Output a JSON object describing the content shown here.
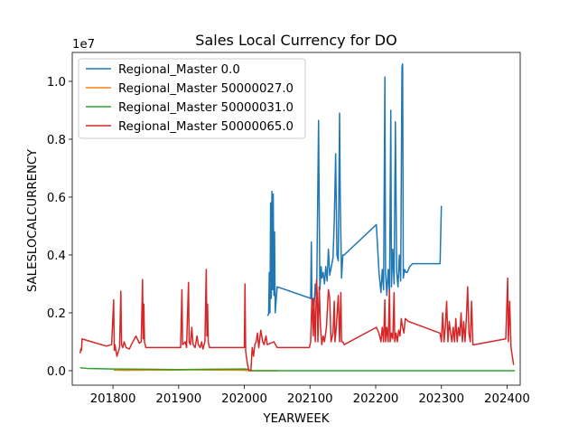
{
  "chart_data": {
    "type": "line",
    "title": "Sales Local Currency for DO",
    "xlabel": "YEARWEEK",
    "ylabel": "SALESLOCALCURRENCY",
    "y_scale_label": "1e7",
    "xlim": [
      201738,
      202420
    ],
    "ylim": [
      -0.5,
      11.0
    ],
    "x_ticks": [
      201800,
      201900,
      202000,
      202100,
      202200,
      202300,
      202400
    ],
    "x_tick_labels": [
      "201800",
      "201900",
      "202000",
      "202100",
      "202200",
      "202300",
      "202400"
    ],
    "y_ticks": [
      0.0,
      0.2,
      0.4,
      0.6,
      0.8,
      1.0
    ],
    "y_tick_labels": [
      "0.0",
      "0.2",
      "0.4",
      "0.6",
      "0.8",
      "1.0"
    ],
    "y_tick_units_in_1e7": [
      0,
      2,
      4,
      6,
      8,
      10
    ],
    "grid": false,
    "legend_position": "top-left",
    "series": [
      {
        "name": "Regional_Master 0.0",
        "color": "#1f77b4",
        "points": [
          [
            202035,
            1.9
          ],
          [
            202037,
            1.95
          ],
          [
            202038,
            3.4
          ],
          [
            202039,
            2.0
          ],
          [
            202040,
            5.8
          ],
          [
            202041,
            2.5
          ],
          [
            202042,
            6.2
          ],
          [
            202043,
            2.8
          ],
          [
            202044,
            6.1
          ],
          [
            202045,
            2.6
          ],
          [
            202046,
            4.8
          ],
          [
            202047,
            2.0
          ],
          [
            202050,
            2.9
          ],
          [
            202101,
            2.5
          ],
          [
            202102,
            4.45
          ],
          [
            202103,
            2.3
          ],
          [
            202104,
            2.5
          ],
          [
            202106,
            2.2
          ],
          [
            202108,
            3.0
          ],
          [
            202110,
            2.4
          ],
          [
            202113,
            8.65
          ],
          [
            202115,
            2.8
          ],
          [
            202117,
            3.6
          ],
          [
            202118,
            3.2
          ],
          [
            202120,
            3.4
          ],
          [
            202122,
            3.0
          ],
          [
            202124,
            3.6
          ],
          [
            202126,
            3.1
          ],
          [
            202128,
            4.2
          ],
          [
            202130,
            3.3
          ],
          [
            202135,
            3.9
          ],
          [
            202137,
            5.2
          ],
          [
            202139,
            7.5
          ],
          [
            202141,
            4.0
          ],
          [
            202143,
            3.8
          ],
          [
            202145,
            8.9
          ],
          [
            202146,
            6.0
          ],
          [
            202148,
            3.2
          ],
          [
            202150,
            4.0
          ],
          [
            202152,
            4.0
          ],
          [
            202201,
            5.05
          ],
          [
            202205,
            3.4
          ],
          [
            202208,
            2.7
          ],
          [
            202210,
            3.5
          ],
          [
            202212,
            2.8
          ],
          [
            202214,
            10.15
          ],
          [
            202215,
            3.4
          ],
          [
            202217,
            2.6
          ],
          [
            202219,
            3.5
          ],
          [
            202221,
            2.7
          ],
          [
            202223,
            9.0
          ],
          [
            202224,
            2.9
          ],
          [
            202226,
            4.2
          ],
          [
            202228,
            3.0
          ],
          [
            202230,
            8.6
          ],
          [
            202232,
            3.4
          ],
          [
            202234,
            2.9
          ],
          [
            202236,
            4.0
          ],
          [
            202238,
            3.1
          ],
          [
            202240,
            10.5
          ],
          [
            202241,
            10.6
          ],
          [
            202242,
            3.2
          ],
          [
            202244,
            3.5
          ],
          [
            202246,
            3.4
          ],
          [
            202248,
            3.4
          ],
          [
            202252,
            3.6
          ],
          [
            202256,
            3.7
          ],
          [
            202298,
            3.7
          ],
          [
            202300,
            5.7
          ]
        ]
      },
      {
        "name": "Regional_Master 50000027.0",
        "color": "#ff7f0e",
        "points": [
          [
            201801,
            0.02
          ],
          [
            201820,
            0.01
          ],
          [
            201850,
            0.02
          ],
          [
            201880,
            0.02
          ],
          [
            201920,
            0.03
          ],
          [
            201960,
            0.02
          ],
          [
            201990,
            0.02
          ],
          [
            202020,
            0.0
          ],
          [
            202050,
            0.0
          ]
        ]
      },
      {
        "name": "Regional_Master 50000031.0",
        "color": "#2ca02c",
        "points": [
          [
            201750,
            0.1
          ],
          [
            201760,
            0.08
          ],
          [
            201800,
            0.06
          ],
          [
            201850,
            0.05
          ],
          [
            201900,
            0.04
          ],
          [
            201950,
            0.05
          ],
          [
            202000,
            0.06
          ],
          [
            202006,
            0.05
          ],
          [
            202008,
            0.02
          ],
          [
            202010,
            0.0
          ],
          [
            202020,
            0.0
          ],
          [
            202050,
            0.0
          ],
          [
            202100,
            0.0
          ],
          [
            202150,
            0.0
          ],
          [
            202200,
            0.0
          ],
          [
            202250,
            0.0
          ],
          [
            202300,
            0.0
          ],
          [
            202350,
            0.0
          ],
          [
            202400,
            0.0
          ],
          [
            202412,
            0.0
          ]
        ]
      },
      {
        "name": "Regional_Master 50000065.0",
        "color": "#d62728",
        "points": [
          [
            201750,
            0.6
          ],
          [
            201751,
            0.75
          ],
          [
            201752,
            0.7
          ],
          [
            201753,
            1.1
          ],
          [
            201760,
            1.05
          ],
          [
            201790,
            0.85
          ],
          [
            201798,
            0.9
          ],
          [
            201801,
            2.45
          ],
          [
            201802,
            0.7
          ],
          [
            201803,
            0.9
          ],
          [
            201806,
            0.5
          ],
          [
            201810,
            0.8
          ],
          [
            201812,
            2.75
          ],
          [
            201813,
            0.9
          ],
          [
            201815,
            0.8
          ],
          [
            201817,
            1.0
          ],
          [
            201820,
            0.8
          ],
          [
            201825,
            0.75
          ],
          [
            201828,
            0.9
          ],
          [
            201835,
            1.2
          ],
          [
            201840,
            0.95
          ],
          [
            201843,
            1.0
          ],
          [
            201845,
            3.15
          ],
          [
            201846,
            1.1
          ],
          [
            201847,
            2.3
          ],
          [
            201848,
            1.0
          ],
          [
            201850,
            0.8
          ],
          [
            201860,
            0.8
          ],
          [
            201903,
            0.8
          ],
          [
            201905,
            2.8
          ],
          [
            201906,
            0.9
          ],
          [
            201910,
            1.0
          ],
          [
            201912,
            0.8
          ],
          [
            201915,
            3.05
          ],
          [
            201916,
            1.0
          ],
          [
            201918,
            0.9
          ],
          [
            201920,
            1.5
          ],
          [
            201922,
            0.9
          ],
          [
            201925,
            0.8
          ],
          [
            201928,
            1.2
          ],
          [
            201930,
            0.9
          ],
          [
            201933,
            0.8
          ],
          [
            201935,
            1.0
          ],
          [
            201937,
            0.75
          ],
          [
            201940,
            1.0
          ],
          [
            201942,
            3.5
          ],
          [
            201943,
            1.2
          ],
          [
            201944,
            2.3
          ],
          [
            201945,
            1.0
          ],
          [
            201947,
            0.8
          ],
          [
            201950,
            0.8
          ],
          [
            202000,
            0.8
          ],
          [
            202001,
            3.0
          ],
          [
            202002,
            0.7
          ],
          [
            202003,
            0.5
          ],
          [
            202005,
            0.2
          ],
          [
            202007,
            0.0
          ],
          [
            202010,
            0.0
          ],
          [
            202012,
            0.8
          ],
          [
            202014,
            0.5
          ],
          [
            202016,
            0.9
          ],
          [
            202018,
            1.0
          ],
          [
            202020,
            1.3
          ],
          [
            202022,
            0.8
          ],
          [
            202025,
            1.4
          ],
          [
            202028,
            1.0
          ],
          [
            202030,
            0.9
          ],
          [
            202033,
            1.2
          ],
          [
            202035,
            0.9
          ],
          [
            202040,
            0.95
          ],
          [
            202045,
            1.0
          ],
          [
            202050,
            0.8
          ],
          [
            202099,
            0.8
          ],
          [
            202101,
            1.0
          ],
          [
            202102,
            1.8
          ],
          [
            202103,
            2.5
          ],
          [
            202105,
            1.2
          ],
          [
            202106,
            2.5
          ],
          [
            202108,
            1.0
          ],
          [
            202110,
            3.15
          ],
          [
            202111,
            2.6
          ],
          [
            202112,
            1.0
          ],
          [
            202114,
            2.9
          ],
          [
            202116,
            1.5
          ],
          [
            202118,
            0.9
          ],
          [
            202120,
            1.2
          ],
          [
            202122,
            1.0
          ],
          [
            202125,
            1.5
          ],
          [
            202128,
            2.8
          ],
          [
            202130,
            2.5
          ],
          [
            202132,
            1.0
          ],
          [
            202135,
            1.3
          ],
          [
            202137,
            2.4
          ],
          [
            202138,
            1.0
          ],
          [
            202140,
            1.5
          ],
          [
            202143,
            2.6
          ],
          [
            202145,
            1.0
          ],
          [
            202147,
            2.7
          ],
          [
            202148,
            1.0
          ],
          [
            202150,
            1.0
          ],
          [
            202152,
            0.9
          ],
          [
            202201,
            1.5
          ],
          [
            202203,
            1.4
          ],
          [
            202205,
            1.3
          ],
          [
            202208,
            1.0
          ],
          [
            202210,
            1.5
          ],
          [
            202212,
            1.0
          ],
          [
            202214,
            2.45
          ],
          [
            202215,
            1.0
          ],
          [
            202217,
            1.5
          ],
          [
            202219,
            1.0
          ],
          [
            202221,
            2.8
          ],
          [
            202222,
            1.0
          ],
          [
            202224,
            1.3
          ],
          [
            202226,
            1.1
          ],
          [
            202228,
            2.7
          ],
          [
            202229,
            1.0
          ],
          [
            202231,
            1.3
          ],
          [
            202233,
            1.0
          ],
          [
            202235,
            1.4
          ],
          [
            202237,
            1.2
          ],
          [
            202239,
            1.8
          ],
          [
            202241,
            1.5
          ],
          [
            202243,
            1.3
          ],
          [
            202245,
            1.8
          ],
          [
            202250,
            1.7
          ],
          [
            202298,
            1.3
          ],
          [
            202300,
            1.0
          ],
          [
            202302,
            2.0
          ],
          [
            202304,
            1.0
          ],
          [
            202306,
            1.5
          ],
          [
            202308,
            2.4
          ],
          [
            202310,
            1.0
          ],
          [
            202312,
            1.7
          ],
          [
            202314,
            1.3
          ],
          [
            202316,
            1.0
          ],
          [
            202318,
            1.5
          ],
          [
            202320,
            1.0
          ],
          [
            202322,
            1.8
          ],
          [
            202324,
            1.0
          ],
          [
            202326,
            1.5
          ],
          [
            202328,
            1.2
          ],
          [
            202330,
            2.0
          ],
          [
            202332,
            1.0
          ],
          [
            202334,
            1.7
          ],
          [
            202336,
            1.0
          ],
          [
            202338,
            1.8
          ],
          [
            202340,
            2.9
          ],
          [
            202342,
            1.3
          ],
          [
            202344,
            1.0
          ],
          [
            202346,
            2.4
          ],
          [
            202348,
            0.9
          ],
          [
            202350,
            0.9
          ],
          [
            202398,
            1.1
          ],
          [
            202401,
            3.2
          ],
          [
            202402,
            1.0
          ],
          [
            202404,
            2.4
          ],
          [
            202406,
            0.8
          ],
          [
            202408,
            0.5
          ],
          [
            202410,
            0.2
          ]
        ]
      }
    ]
  }
}
